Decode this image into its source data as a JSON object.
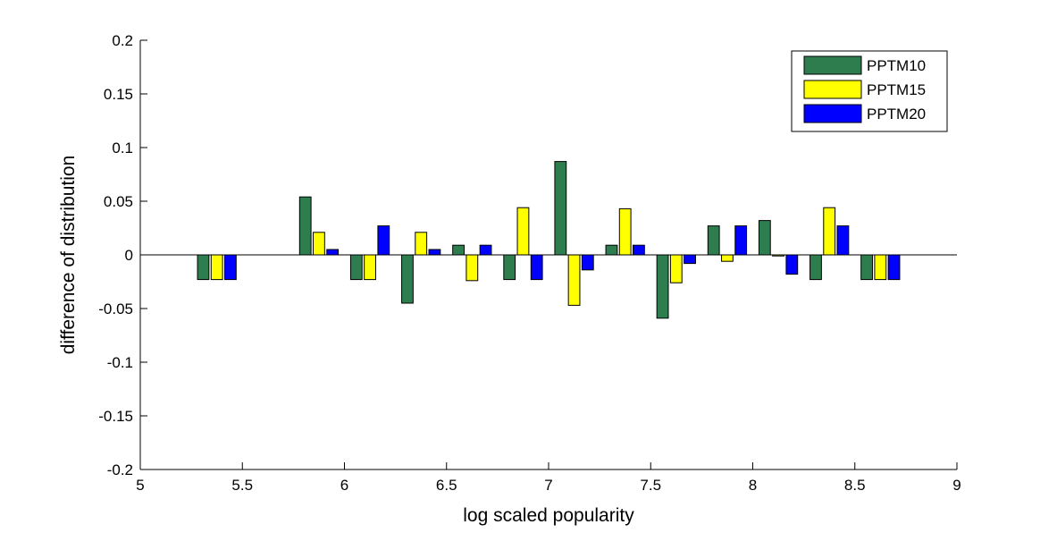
{
  "chart_data": {
    "type": "bar",
    "title": "",
    "xlabel": "log scaled popularity",
    "ylabel": "difference of distribution",
    "xlim": [
      5,
      9
    ],
    "ylim": [
      -0.2,
      0.2
    ],
    "xticks": [
      "5",
      "5.5",
      "6",
      "6.5",
      "7",
      "7.5",
      "8",
      "8.5",
      "9"
    ],
    "yticks": [
      "0.2",
      "0.15",
      "0.1",
      "0.05",
      "0",
      "-0.05",
      "-0.1",
      "-0.15",
      "-0.2"
    ],
    "grid": false,
    "legend_position": "top-right",
    "x": [
      5.375,
      5.625,
      5.875,
      6.125,
      6.375,
      6.625,
      6.875,
      7.125,
      7.375,
      7.625,
      7.875,
      8.125,
      8.375,
      8.625
    ],
    "series": [
      {
        "name": "PPTM10",
        "color": "#2e7d4f",
        "values": [
          -0.023,
          0,
          0.054,
          -0.023,
          -0.045,
          0.009,
          -0.023,
          0.087,
          0.009,
          -0.059,
          0.027,
          0.032,
          -0.023,
          -0.023
        ]
      },
      {
        "name": "PPTM15",
        "color": "#ffff00",
        "values": [
          -0.023,
          0,
          0.021,
          -0.023,
          0.021,
          -0.024,
          0.044,
          -0.047,
          0.043,
          -0.026,
          -0.006,
          -0.001,
          0.044,
          -0.023
        ]
      },
      {
        "name": "PPTM20",
        "color": "#0000ff",
        "values": [
          -0.023,
          0,
          0.005,
          0.027,
          0.005,
          0.009,
          -0.023,
          -0.014,
          0.009,
          -0.008,
          0.027,
          -0.018,
          0.027,
          -0.023
        ]
      }
    ]
  }
}
